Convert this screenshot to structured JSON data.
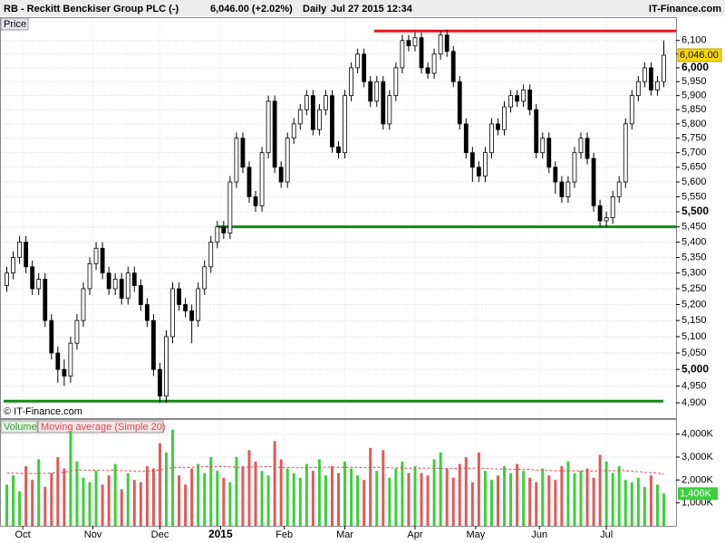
{
  "chart_data": {
    "type": "candlestick",
    "title": "RB - Reckitt Benckiser Group PLC (-)",
    "last_quote": "6,046.00 (+2.02%)",
    "interval": "Daily",
    "timestamp": "Jul 27 2015 12:34",
    "source": "IT-Finance.com",
    "panel_label": "Price",
    "copyright": "© IT-Finance.com",
    "log_scale": true,
    "grid": true,
    "ylim": [
      4855,
      6183
    ],
    "yticks": [
      {
        "value": 4900,
        "label": "4,900"
      },
      {
        "value": 4950,
        "label": "4,950"
      },
      {
        "value": 5000,
        "label": "5,000"
      },
      {
        "value": 5050,
        "label": "5,050"
      },
      {
        "value": 5100,
        "label": "5,100"
      },
      {
        "value": 5150,
        "label": "5,150"
      },
      {
        "value": 5200,
        "label": "5,200"
      },
      {
        "value": 5250,
        "label": "5,250"
      },
      {
        "value": 5300,
        "label": "5,300"
      },
      {
        "value": 5350,
        "label": "5,350"
      },
      {
        "value": 5400,
        "label": "5,400"
      },
      {
        "value": 5450,
        "label": "5,450"
      },
      {
        "value": 5500,
        "label": "5,500"
      },
      {
        "value": 5550,
        "label": "5,550"
      },
      {
        "value": 5600,
        "label": "5,600"
      },
      {
        "value": 5650,
        "label": "5,650"
      },
      {
        "value": 5700,
        "label": "5,700"
      },
      {
        "value": 5750,
        "label": "5,750"
      },
      {
        "value": 5800,
        "label": "5,800"
      },
      {
        "value": 5850,
        "label": "5,850"
      },
      {
        "value": 5900,
        "label": "5,900"
      },
      {
        "value": 5950,
        "label": "5,950"
      },
      {
        "value": 6000,
        "label": "6,000"
      },
      {
        "value": 6050,
        "label": "6,050"
      },
      {
        "value": 6100,
        "label": "6,100"
      }
    ],
    "xticks": [
      {
        "value": 2.5,
        "label": "Oct"
      },
      {
        "value": 13.5,
        "label": "Nov"
      },
      {
        "value": 24,
        "label": "Dec"
      },
      {
        "value": 33.5,
        "label": "2015"
      },
      {
        "value": 43.5,
        "label": "Feb"
      },
      {
        "value": 53,
        "label": "Mar"
      },
      {
        "value": 64,
        "label": "Apr"
      },
      {
        "value": 73.5,
        "label": "May"
      },
      {
        "value": 83.5,
        "label": "Jun"
      },
      {
        "value": 94,
        "label": "Jul"
      }
    ],
    "open": [
      5260,
      5300,
      5350,
      5400,
      5320,
      5250,
      5280,
      5150,
      5050,
      5000,
      4980,
      5080,
      5150,
      5250,
      5330,
      5380,
      5300,
      5250,
      5280,
      5220,
      5300,
      5260,
      5200,
      5150,
      5000,
      4920,
      5100,
      5250,
      5200,
      5180,
      5150,
      5250,
      5320,
      5400,
      5450,
      5430,
      5600,
      5750,
      5650,
      5550,
      5520,
      5700,
      5880,
      5650,
      5600,
      5750,
      5800,
      5850,
      5900,
      5780,
      5850,
      5900,
      5720,
      5700,
      5900,
      6000,
      6050,
      5950,
      5880,
      5950,
      5800,
      5900,
      6000,
      6100,
      6080,
      6110,
      6000,
      5980,
      6050,
      6120,
      6060,
      5950,
      5800,
      5700,
      5650,
      5620,
      5700,
      5800,
      5780,
      5860,
      5900,
      5880,
      5920,
      5850,
      5700,
      5750,
      5650,
      5600,
      5550,
      5600,
      5700,
      5750,
      5680,
      5520,
      5470,
      5480,
      5550,
      5600,
      5800,
      5900,
      5950,
      6000,
      5920,
      5950
    ],
    "high": [
      5320,
      5370,
      5420,
      5420,
      5340,
      5300,
      5300,
      5170,
      5070,
      5030,
      5100,
      5170,
      5270,
      5350,
      5400,
      5400,
      5320,
      5300,
      5300,
      5320,
      5320,
      5280,
      5220,
      5170,
      5020,
      5120,
      5270,
      5270,
      5220,
      5200,
      5270,
      5340,
      5420,
      5470,
      5470,
      5620,
      5770,
      5770,
      5670,
      5570,
      5720,
      5900,
      5900,
      5670,
      5770,
      5820,
      5870,
      5920,
      5920,
      5870,
      5920,
      5920,
      5740,
      5920,
      6020,
      6070,
      6070,
      5970,
      5970,
      5970,
      5920,
      6020,
      6120,
      6120,
      6130,
      6130,
      6020,
      6070,
      6135,
      6140,
      6080,
      5970,
      5820,
      5720,
      5670,
      5720,
      5820,
      5820,
      5880,
      5920,
      5920,
      5940,
      5940,
      5870,
      5770,
      5770,
      5670,
      5620,
      5620,
      5720,
      5770,
      5770,
      5700,
      5540,
      5500,
      5570,
      5620,
      5820,
      5920,
      5970,
      6020,
      6020,
      5970,
      6100
    ],
    "low": [
      5240,
      5280,
      5330,
      5300,
      5230,
      5230,
      5130,
      5030,
      4960,
      4950,
      4960,
      5060,
      5130,
      5230,
      5310,
      5280,
      5230,
      5230,
      5200,
      5200,
      5240,
      5180,
      5130,
      4980,
      4900,
      4900,
      5080,
      5180,
      5160,
      5080,
      5130,
      5230,
      5300,
      5380,
      5410,
      5410,
      5580,
      5630,
      5530,
      5500,
      5500,
      5680,
      5630,
      5580,
      5580,
      5730,
      5780,
      5830,
      5760,
      5760,
      5830,
      5700,
      5680,
      5680,
      5880,
      5980,
      5930,
      5860,
      5860,
      5780,
      5780,
      5880,
      5980,
      6060,
      6060,
      5980,
      5960,
      5960,
      6030,
      6040,
      5930,
      5780,
      5680,
      5600,
      5600,
      5600,
      5680,
      5760,
      5760,
      5840,
      5860,
      5860,
      5830,
      5680,
      5680,
      5630,
      5560,
      5530,
      5530,
      5580,
      5680,
      5660,
      5500,
      5450,
      5450,
      5460,
      5530,
      5580,
      5780,
      5880,
      5930,
      5900,
      5900,
      5930
    ],
    "close": [
      5300,
      5350,
      5400,
      5320,
      5250,
      5280,
      5150,
      5050,
      5000,
      4980,
      5080,
      5150,
      5250,
      5330,
      5380,
      5300,
      5250,
      5280,
      5220,
      5300,
      5260,
      5200,
      5150,
      5000,
      4920,
      5100,
      5250,
      5200,
      5180,
      5150,
      5250,
      5320,
      5400,
      5450,
      5430,
      5600,
      5750,
      5650,
      5550,
      5520,
      5700,
      5880,
      5650,
      5600,
      5750,
      5800,
      5850,
      5900,
      5780,
      5850,
      5900,
      5720,
      5700,
      5900,
      6000,
      6050,
      5950,
      5880,
      5950,
      5800,
      5900,
      6000,
      6100,
      6080,
      6110,
      6000,
      5980,
      6050,
      6120,
      6060,
      5950,
      5800,
      5700,
      5650,
      5620,
      5700,
      5800,
      5780,
      5860,
      5900,
      5880,
      5920,
      5850,
      5700,
      5750,
      5650,
      5600,
      5550,
      5600,
      5700,
      5750,
      5680,
      5520,
      5470,
      5480,
      5550,
      5600,
      5800,
      5900,
      5950,
      6000,
      5920,
      5950,
      6046
    ],
    "last_close_label": "6,046.00",
    "up_color": "#ffffff",
    "down_color": "#000000",
    "levels": [
      {
        "value": 6135,
        "start": 57.6,
        "color": "#e8141b"
      },
      {
        "value": 5450,
        "start": 33,
        "color": "#138a13"
      },
      {
        "value": 4905,
        "start": -0.5,
        "color": "#138a13"
      }
    ],
    "volume": {
      "name": "Volume",
      "up_color": "#3ccf3c",
      "down_color": "#e05a5a",
      "ylim": [
        0,
        4620
      ],
      "yticks": [
        {
          "value": 1000,
          "label": "1,000K"
        },
        {
          "value": 2000,
          "label": "2,000K"
        },
        {
          "value": 3000,
          "label": "3,000K"
        },
        {
          "value": 4000,
          "label": "4,000K"
        }
      ],
      "values": [
        1800,
        2200,
        1500,
        2600,
        2000,
        2900,
        1700,
        2300,
        3000,
        2500,
        4100,
        2800,
        2100,
        1900,
        2400,
        1800,
        2200,
        2700,
        1600,
        2300,
        2000,
        1900,
        2600,
        2500,
        3600,
        3200,
        4200,
        2200,
        1800,
        2500,
        2700,
        2300,
        3000,
        2400,
        2100,
        1900,
        3000,
        2600,
        3300,
        2800,
        2400,
        2200,
        3700,
        2900,
        2500,
        2300,
        2100,
        2700,
        2400,
        2900,
        2200,
        2600,
        2300,
        2800,
        2500,
        2200,
        2000,
        3400,
        2400,
        3300,
        2100,
        2500,
        2800,
        2300,
        2600,
        2300,
        2200,
        2900,
        3200,
        2500,
        2100,
        2700,
        3000,
        1900,
        3200,
        2400,
        2000,
        2200,
        2600,
        2300,
        2700,
        2400,
        2100,
        1900,
        2500,
        2200,
        2000,
        2600,
        2800,
        2300,
        2400,
        2500,
        2100,
        3100,
        2800,
        2300,
        2600,
        2000,
        1900,
        2100,
        1700,
        2200,
        1800,
        1406
      ],
      "last_label": "1,406K",
      "moving_average": {
        "name": "Moving average (Simple 20)",
        "color": "#d05050",
        "values": [
          2300,
          2300,
          2290,
          2290,
          2280,
          2290,
          2290,
          2300,
          2320,
          2330,
          2400,
          2420,
          2430,
          2420,
          2430,
          2420,
          2420,
          2430,
          2410,
          2400,
          2380,
          2370,
          2380,
          2390,
          2450,
          2480,
          2550,
          2550,
          2540,
          2560,
          2570,
          2580,
          2590,
          2590,
          2600,
          2570,
          2560,
          2560,
          2560,
          2580,
          2580,
          2590,
          2560,
          2550,
          2550,
          2540,
          2530,
          2530,
          2540,
          2560,
          2560,
          2570,
          2560,
          2560,
          2560,
          2550,
          2540,
          2550,
          2550,
          2560,
          2540,
          2530,
          2520,
          2510,
          2520,
          2520,
          2520,
          2520,
          2510,
          2500,
          2500,
          2510,
          2520,
          2510,
          2520,
          2510,
          2490,
          2480,
          2480,
          2460,
          2470,
          2470,
          2460,
          2430,
          2420,
          2420,
          2400,
          2400,
          2400,
          2400,
          2390,
          2390,
          2380,
          2400,
          2410,
          2400,
          2420,
          2400,
          2380,
          2360,
          2330,
          2320,
          2300,
          2250
        ]
      }
    }
  }
}
